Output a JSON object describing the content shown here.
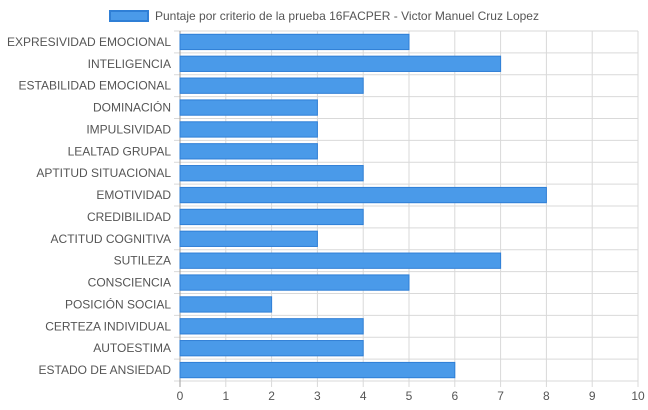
{
  "chart_data": {
    "type": "bar",
    "orientation": "horizontal",
    "legend": "top",
    "grid": true,
    "xlim": [
      0,
      10
    ],
    "xticks": [
      "0",
      "1",
      "2",
      "3",
      "4",
      "5",
      "6",
      "7",
      "8",
      "9",
      "10"
    ],
    "categories": [
      "EXPRESIVIDAD EMOCIONAL",
      "INTELIGENCIA",
      "ESTABILIDAD EMOCIONAL",
      "DOMINACIÓN",
      "IMPULSIVIDAD",
      "LEALTAD GRUPAL",
      "APTITUD SITUACIONAL",
      "EMOTIVIDAD",
      "CREDIBILIDAD",
      "ACTITUD COGNITIVA",
      "SUTILEZA",
      "CONSCIENCIA",
      "POSICIÓN SOCIAL",
      "CERTEZA INDIVIDUAL",
      "AUTOESTIMA",
      "ESTADO DE ANSIEDAD"
    ],
    "series": [
      {
        "name": "Puntaje por criterio de la prueba 16FACPER - Victor Manuel Cruz Lopez",
        "values": [
          5,
          7,
          4,
          3,
          3,
          3,
          4,
          8,
          4,
          3,
          7,
          5,
          2,
          4,
          4,
          6
        ]
      }
    ]
  },
  "colors": {
    "bar_fill": "#4a9ae9",
    "bar_stroke": "#2f7fd6",
    "grid": "#d9d9d9",
    "axis": "#9e9e9e",
    "text": "#555555"
  }
}
